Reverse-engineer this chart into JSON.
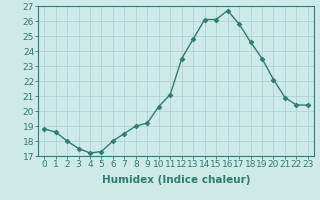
{
  "x": [
    0,
    1,
    2,
    3,
    4,
    5,
    6,
    7,
    8,
    9,
    10,
    11,
    12,
    13,
    14,
    15,
    16,
    17,
    18,
    19,
    20,
    21,
    22,
    23
  ],
  "y": [
    18.8,
    18.6,
    18.0,
    17.5,
    17.2,
    17.3,
    18.0,
    18.5,
    19.0,
    19.2,
    20.3,
    21.1,
    23.5,
    24.8,
    26.1,
    26.1,
    26.7,
    25.8,
    24.6,
    23.5,
    22.1,
    20.9,
    20.4,
    20.4
  ],
  "line_color": "#2e7d6e",
  "marker": "D",
  "marker_size": 2.5,
  "bg_color": "#ceeae7",
  "grid_color": "#afd4d0",
  "axis_color": "#2e7d6e",
  "xlabel": "Humidex (Indice chaleur)",
  "ylim": [
    17,
    27
  ],
  "xlim": [
    -0.5,
    23.5
  ],
  "yticks": [
    17,
    18,
    19,
    20,
    21,
    22,
    23,
    24,
    25,
    26,
    27
  ],
  "xticks": [
    0,
    1,
    2,
    3,
    4,
    5,
    6,
    7,
    8,
    9,
    10,
    11,
    12,
    13,
    14,
    15,
    16,
    17,
    18,
    19,
    20,
    21,
    22,
    23
  ],
  "xlabel_fontsize": 7.5,
  "tick_fontsize": 6.5
}
